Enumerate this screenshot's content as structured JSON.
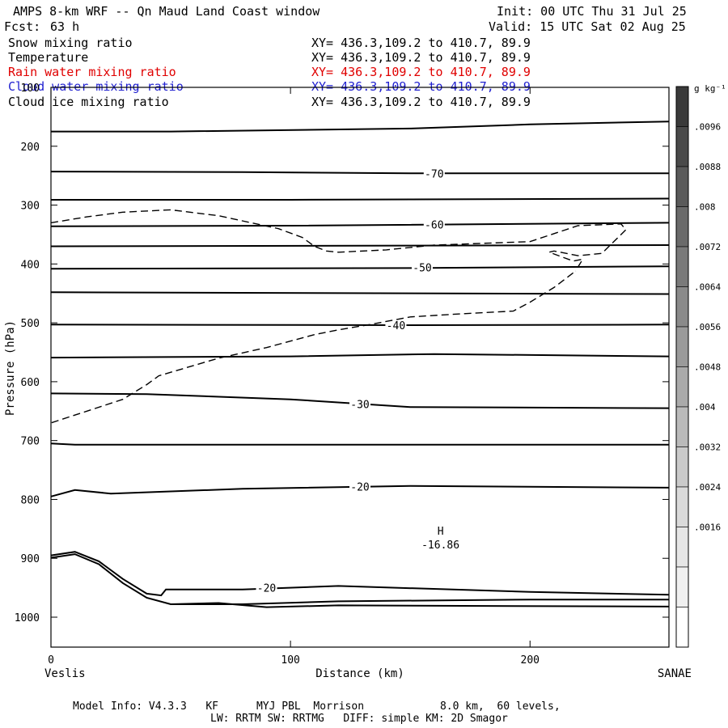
{
  "header": {
    "title": "AMPS 8-km WRF -- Qn Maud Land Coast window",
    "init": "Init: 00 UTC Thu 31 Jul 25",
    "fcst_label": "Fcst:",
    "fcst_value": "63 h",
    "valid": "Valid: 15 UTC Sat 02 Aug 25"
  },
  "fields": [
    {
      "name": "Snow mixing ratio",
      "xy": "XY= 436.3,109.2 to 410.7, 89.9",
      "color": "#000000"
    },
    {
      "name": "Temperature",
      "xy": "XY= 436.3,109.2 to 410.7, 89.9",
      "color": "#000000"
    },
    {
      "name": "Rain water mixing ratio",
      "xy": "XY= 436.3,109.2 to 410.7, 89.9",
      "color": "#e00000"
    },
    {
      "name": "Cloud water mixing ratio",
      "xy": "XY= 436.3,109.2 to 410.7, 89.9",
      "color": "#2020d0"
    },
    {
      "name": "Cloud ice mixing ratio",
      "xy": "XY= 436.3,109.2 to 410.7, 89.9",
      "color": "#000000"
    }
  ],
  "footer": {
    "line1": "Model Info: V4.3.3   KF      MYJ PBL  Morrison            8.0 km,  60 levels,",
    "line2": "LW: RRTM SW: RRTMG   DIFF: simple KM: 2D Smagor"
  },
  "chart_data": {
    "type": "line",
    "title": "AMPS 8-km WRF -- Qn Maud Land Coast window",
    "xlabel": "Distance (km)",
    "ylabel": "Pressure (hPa)",
    "xlim": [
      0,
      258
    ],
    "ylim": [
      100,
      1050
    ],
    "y_inverted": true,
    "x_ticks": [
      0,
      100,
      200
    ],
    "y_ticks": [
      100,
      200,
      300,
      400,
      500,
      600,
      700,
      800,
      900,
      1000
    ],
    "x_end_labels": {
      "left": "Veslis",
      "right": "SANAE"
    },
    "colorbar": {
      "unit": "g kg⁻¹",
      "labels": [
        ".0096",
        ".0088",
        ".008",
        ".0072",
        ".0064",
        ".0056",
        ".0048",
        ".004",
        ".0032",
        ".0024",
        ".0016"
      ],
      "colors": [
        "#3a3a3a",
        "#4a4a4a",
        "#5a5a5a",
        "#6a6a6a",
        "#7a7a7a",
        "#8a8a8a",
        "#9a9a9a",
        "#aaaaaa",
        "#bababa",
        "#cacaca",
        "#dadada",
        "#e6e6e6",
        "#f0f0f0",
        "#ffffff"
      ]
    },
    "high": {
      "label": "H",
      "value": "-16.86",
      "x": 165,
      "p": 860
    },
    "isotherms": [
      {
        "x": [
          0,
          50,
          150,
          200,
          258
        ],
        "p": [
          175,
          175,
          170,
          163,
          158
        ],
        "label": null
      },
      {
        "x": [
          0,
          80,
          150,
          258
        ],
        "p": [
          243,
          244,
          246,
          246
        ],
        "label": "-70",
        "lx": 160,
        "lp": 246
      },
      {
        "x": [
          0,
          100,
          258
        ],
        "p": [
          291,
          291,
          289
        ],
        "label": null
      },
      {
        "x": [
          0,
          100,
          258
        ],
        "p": [
          336,
          335,
          330
        ],
        "label": "-60",
        "lx": 160,
        "lp": 333
      },
      {
        "x": [
          0,
          258
        ],
        "p": [
          370,
          368
        ],
        "label": null
      },
      {
        "x": [
          0,
          150,
          258
        ],
        "p": [
          408,
          407,
          404
        ],
        "label": "-50",
        "lx": 155,
        "lp": 406
      },
      {
        "x": [
          0,
          258
        ],
        "p": [
          448,
          451
        ],
        "label": null
      },
      {
        "x": [
          0,
          150,
          258
        ],
        "p": [
          503,
          504,
          503
        ],
        "label": "-40",
        "lx": 144,
        "lp": 504
      },
      {
        "x": [
          0,
          100,
          160,
          258
        ],
        "p": [
          559,
          557,
          553,
          557
        ],
        "label": null
      },
      {
        "x": [
          0,
          40,
          100,
          150,
          258
        ],
        "p": [
          620,
          621,
          630,
          643,
          645
        ],
        "label": "-30",
        "lx": 129,
        "lp": 638
      },
      {
        "x": [
          0,
          10,
          258
        ],
        "p": [
          705,
          707,
          707
        ],
        "label": null
      },
      {
        "x": [
          0,
          10,
          25,
          80,
          150,
          258
        ],
        "p": [
          795,
          784,
          790,
          782,
          777,
          780
        ],
        "label": "-20",
        "lx": 129,
        "lp": 778
      },
      {
        "x": [
          0,
          10,
          20,
          30,
          40,
          46,
          48,
          80,
          120,
          200,
          258
        ],
        "p": [
          895,
          889,
          905,
          935,
          960,
          963,
          953,
          953,
          947,
          957,
          962
        ],
        "label": "-20",
        "lx": 90,
        "lp": 950
      },
      {
        "x": [
          0,
          10,
          20,
          30,
          40,
          50,
          80,
          120,
          200,
          258
        ],
        "p": [
          899,
          893,
          910,
          942,
          967,
          978,
          978,
          973,
          970,
          970
        ],
        "label": null
      },
      {
        "x": [
          50,
          70,
          90,
          120,
          258
        ],
        "p": [
          978,
          976,
          983,
          980,
          982
        ],
        "label": null
      }
    ],
    "cloud_ice_dashed": [
      {
        "x": [
          0,
          15,
          30,
          50,
          70,
          95,
          105,
          110,
          115,
          120,
          140,
          160,
          200,
          220,
          238,
          240,
          230,
          220,
          210,
          208,
          218,
          222,
          219
        ],
        "p": [
          330,
          320,
          312,
          308,
          318,
          340,
          355,
          370,
          378,
          380,
          376,
          368,
          362,
          335,
          332,
          342,
          382,
          386,
          378,
          380,
          395,
          392,
          412
        ]
      },
      {
        "x": [
          218,
          210,
          200,
          193,
          170,
          150,
          133,
          120,
          110,
          90,
          70,
          60,
          45,
          40,
          30,
          15,
          0
        ],
        "p": [
          415,
          440,
          465,
          480,
          485,
          490,
          503,
          512,
          520,
          542,
          560,
          572,
          590,
          605,
          630,
          650,
          670
        ]
      }
    ]
  }
}
